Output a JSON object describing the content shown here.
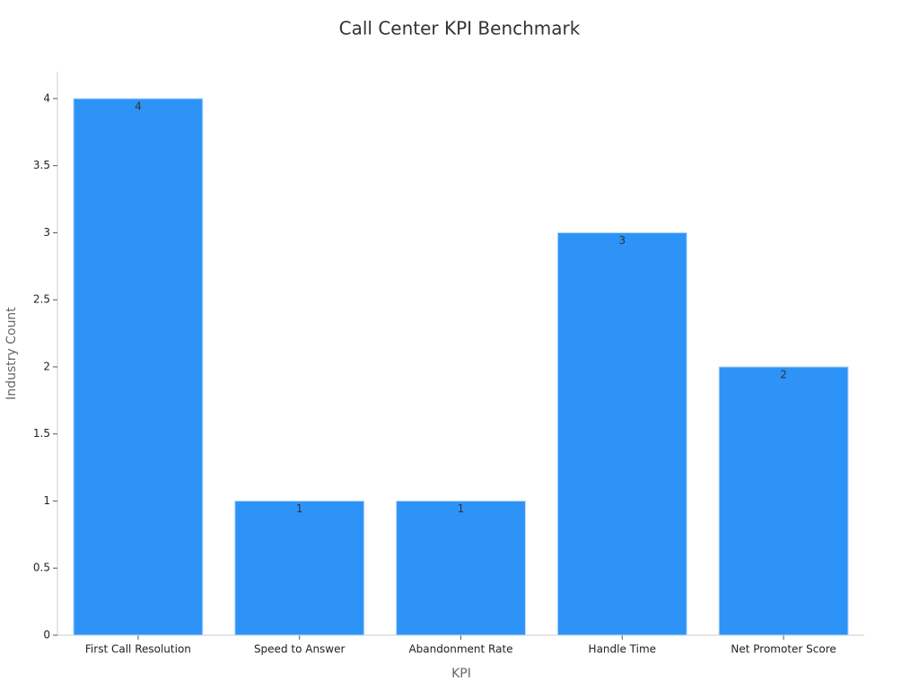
{
  "chart_data": {
    "type": "bar",
    "title": "Call Center KPI Benchmark",
    "x_label": "KPI",
    "y_label": "Industry Count",
    "categories": [
      "First Call Resolution",
      "Speed to Answer",
      "Abandonment Rate",
      "Handle Time",
      "Net Promoter Score"
    ],
    "values": [
      4,
      1,
      1,
      3,
      2
    ],
    "color": "#2e93f7",
    "ylim": [
      0,
      4.2
    ],
    "yticks": [
      0,
      0.5,
      1,
      1.5,
      2,
      2.5,
      3,
      3.5,
      4
    ],
    "grid": false,
    "data_labels": true
  }
}
